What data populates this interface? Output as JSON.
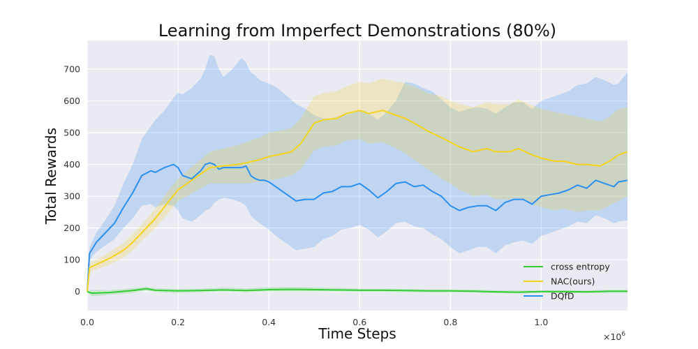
{
  "chart_data": {
    "type": "line",
    "title": "Learning from Imperfect Demonstrations (80%)",
    "xlabel": "Time Steps",
    "ylabel": "Total Rewards",
    "x_multiplier_label": "×10",
    "x_multiplier_exp": "6",
    "xlim": [
      0,
      1.19
    ],
    "ylim": [
      -60,
      790
    ],
    "xticks": [
      0.0,
      0.2,
      0.4,
      0.6,
      0.8,
      1.0
    ],
    "xtick_labels": [
      "0.0",
      "0.2",
      "0.4",
      "0.6",
      "0.8",
      "1.0"
    ],
    "yticks": [
      0,
      100,
      200,
      300,
      400,
      500,
      600,
      700
    ],
    "ytick_labels": [
      "0",
      "100",
      "200",
      "300",
      "400",
      "500",
      "600",
      "700"
    ],
    "legend_position": "bottom-right",
    "series": [
      {
        "name": "cross entropy",
        "color": "#33cc33",
        "x": [
          0,
          0.01,
          0.05,
          0.1,
          0.13,
          0.15,
          0.2,
          0.25,
          0.3,
          0.35,
          0.4,
          0.45,
          0.5,
          0.55,
          0.6,
          0.65,
          0.7,
          0.75,
          0.8,
          0.85,
          0.9,
          0.95,
          1.0,
          1.05,
          1.1,
          1.15,
          1.19
        ],
        "y": [
          0,
          -5,
          -3,
          3,
          9,
          4,
          2,
          3,
          5,
          3,
          6,
          7,
          6,
          5,
          4,
          4,
          3,
          2,
          2,
          1,
          -1,
          -2,
          0,
          0,
          -1,
          1,
          1
        ],
        "lower": [
          0,
          -15,
          -10,
          -4,
          3,
          -2,
          -4,
          -2,
          0,
          -2,
          0,
          0,
          0,
          0,
          -1,
          -1,
          -2,
          -3,
          -3,
          -3,
          -5,
          -6,
          -4,
          -4,
          -5,
          -4,
          -4
        ],
        "upper": [
          0,
          5,
          4,
          10,
          15,
          10,
          8,
          9,
          12,
          10,
          13,
          14,
          13,
          11,
          9,
          9,
          8,
          7,
          7,
          6,
          4,
          3,
          4,
          4,
          3,
          5,
          5
        ]
      },
      {
        "name": "NAC(ours)",
        "color": "#f5d31b",
        "x": [
          0,
          0.005,
          0.02,
          0.05,
          0.08,
          0.1,
          0.12,
          0.15,
          0.18,
          0.2,
          0.22,
          0.25,
          0.27,
          0.3,
          0.33,
          0.35,
          0.38,
          0.4,
          0.42,
          0.45,
          0.47,
          0.5,
          0.52,
          0.55,
          0.57,
          0.6,
          0.62,
          0.65,
          0.68,
          0.7,
          0.72,
          0.75,
          0.78,
          0.8,
          0.82,
          0.85,
          0.88,
          0.9,
          0.93,
          0.95,
          0.98,
          1.0,
          1.03,
          1.05,
          1.08,
          1.1,
          1.13,
          1.15,
          1.17,
          1.19
        ],
        "y": [
          0,
          75,
          85,
          105,
          130,
          155,
          185,
          230,
          285,
          320,
          340,
          370,
          390,
          395,
          400,
          405,
          415,
          425,
          430,
          440,
          465,
          530,
          540,
          545,
          560,
          570,
          560,
          570,
          555,
          545,
          530,
          505,
          485,
          470,
          455,
          440,
          450,
          440,
          440,
          450,
          430,
          420,
          410,
          410,
          400,
          400,
          395,
          410,
          430,
          440
        ],
        "lower": [
          0,
          60,
          70,
          85,
          108,
          130,
          160,
          200,
          250,
          285,
          300,
          325,
          340,
          340,
          340,
          340,
          345,
          350,
          355,
          365,
          385,
          445,
          455,
          460,
          475,
          480,
          465,
          470,
          450,
          435,
          415,
          385,
          355,
          340,
          320,
          300,
          305,
          290,
          290,
          295,
          275,
          265,
          255,
          260,
          250,
          255,
          255,
          270,
          285,
          300
        ],
        "upper": [
          0,
          90,
          100,
          125,
          152,
          180,
          210,
          260,
          320,
          355,
          380,
          415,
          440,
          450,
          460,
          470,
          485,
          500,
          505,
          515,
          545,
          615,
          625,
          630,
          645,
          660,
          655,
          670,
          660,
          655,
          645,
          625,
          615,
          600,
          590,
          580,
          595,
          590,
          590,
          605,
          585,
          575,
          565,
          560,
          550,
          545,
          535,
          550,
          575,
          580
        ]
      },
      {
        "name": "DQfD",
        "color": "#2b8ff0",
        "x": [
          0,
          0.005,
          0.02,
          0.04,
          0.06,
          0.08,
          0.1,
          0.12,
          0.14,
          0.15,
          0.17,
          0.19,
          0.2,
          0.21,
          0.23,
          0.25,
          0.26,
          0.27,
          0.28,
          0.29,
          0.3,
          0.32,
          0.34,
          0.35,
          0.36,
          0.37,
          0.38,
          0.39,
          0.4,
          0.42,
          0.44,
          0.46,
          0.48,
          0.5,
          0.52,
          0.54,
          0.56,
          0.58,
          0.6,
          0.62,
          0.64,
          0.66,
          0.68,
          0.7,
          0.72,
          0.74,
          0.76,
          0.78,
          0.8,
          0.82,
          0.84,
          0.86,
          0.88,
          0.9,
          0.92,
          0.94,
          0.96,
          0.98,
          1.0,
          1.02,
          1.04,
          1.06,
          1.08,
          1.1,
          1.12,
          1.14,
          1.16,
          1.17,
          1.19
        ],
        "y": [
          0,
          120,
          155,
          185,
          215,
          265,
          310,
          365,
          380,
          375,
          390,
          400,
          390,
          365,
          355,
          380,
          400,
          405,
          400,
          385,
          390,
          390,
          390,
          395,
          365,
          355,
          350,
          350,
          345,
          325,
          305,
          285,
          290,
          290,
          310,
          315,
          330,
          330,
          340,
          320,
          295,
          315,
          340,
          345,
          330,
          335,
          315,
          300,
          270,
          255,
          265,
          270,
          270,
          255,
          280,
          290,
          290,
          275,
          300,
          305,
          310,
          320,
          335,
          325,
          350,
          340,
          330,
          345,
          350
        ],
        "lower": [
          0,
          100,
          125,
          145,
          165,
          200,
          230,
          270,
          275,
          265,
          275,
          270,
          255,
          230,
          220,
          240,
          255,
          260,
          280,
          290,
          295,
          290,
          280,
          270,
          240,
          225,
          215,
          205,
          195,
          170,
          150,
          130,
          135,
          140,
          165,
          175,
          195,
          200,
          210,
          195,
          170,
          190,
          215,
          220,
          205,
          200,
          180,
          165,
          140,
          120,
          130,
          140,
          140,
          120,
          145,
          155,
          160,
          150,
          175,
          185,
          195,
          205,
          220,
          215,
          240,
          230,
          215,
          220,
          225
        ],
        "upper": [
          0,
          140,
          185,
          225,
          270,
          340,
          400,
          480,
          520,
          540,
          570,
          610,
          625,
          620,
          640,
          670,
          700,
          745,
          740,
          700,
          675,
          700,
          735,
          720,
          690,
          680,
          665,
          660,
          655,
          640,
          615,
          590,
          575,
          555,
          545,
          545,
          555,
          560,
          570,
          560,
          540,
          565,
          600,
          660,
          655,
          640,
          630,
          605,
          580,
          565,
          575,
          580,
          575,
          560,
          580,
          595,
          595,
          575,
          600,
          610,
          620,
          630,
          650,
          655,
          675,
          665,
          650,
          655,
          690
        ]
      }
    ]
  }
}
